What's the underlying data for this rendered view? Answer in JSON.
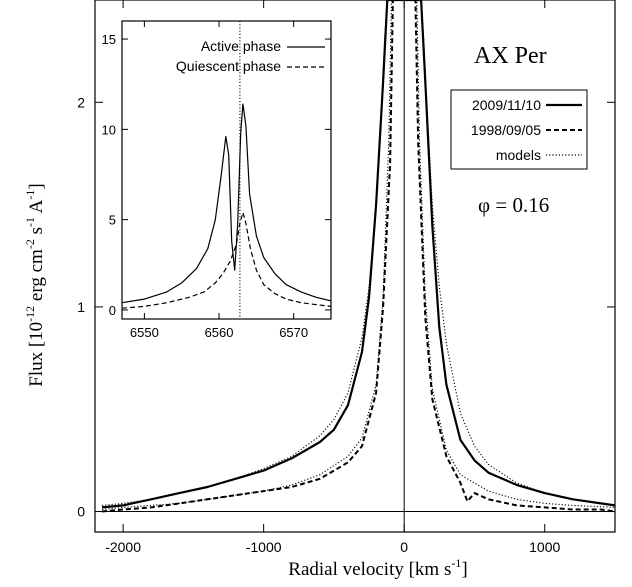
{
  "chart_data": [
    {
      "type": "line",
      "xlabel": "Radial velocity [km s⁻¹]",
      "ylabel": "Flux [10⁻¹² erg cm⁻² s⁻¹ A⁻¹]",
      "xlim": [
        -2200,
        1500
      ],
      "ylim": [
        -0.1,
        2.5
      ],
      "x_ticks": [
        -2000,
        -1000,
        0,
        1000
      ],
      "y_ticks": [
        0,
        1,
        2
      ],
      "x_tick_labels": [
        "-2000",
        "-1000",
        "0",
        "1000"
      ],
      "y_tick_labels": [
        "0",
        "1",
        "2"
      ],
      "grid": false,
      "legend_position": "right",
      "annotations": {
        "object_name": "AX Per",
        "phase": "φ = 0.16"
      },
      "reference_lines": {
        "x": 0,
        "y": 0
      },
      "series": [
        {
          "name": "2009/11/10",
          "style": "solid-thick",
          "x": [
            -2150,
            -2000,
            -1800,
            -1600,
            -1400,
            -1200,
            -1000,
            -800,
            -600,
            -500,
            -400,
            -300,
            -250,
            -200,
            -150,
            -120,
            -100,
            100,
            120,
            150,
            200,
            250,
            300,
            400,
            500,
            600,
            800,
            1000,
            1200,
            1400,
            1500
          ],
          "y": [
            0.02,
            0.03,
            0.06,
            0.09,
            0.12,
            0.16,
            0.2,
            0.26,
            0.34,
            0.4,
            0.52,
            0.78,
            1.05,
            1.5,
            2.1,
            2.5,
            2.5,
            2.5,
            2.5,
            2.1,
            1.4,
            0.9,
            0.62,
            0.35,
            0.25,
            0.19,
            0.13,
            0.09,
            0.06,
            0.04,
            0.03
          ]
        },
        {
          "name": "1998/09/05",
          "style": "dashed-thick",
          "x": [
            -2150,
            -2000,
            -1800,
            -1600,
            -1400,
            -1200,
            -1000,
            -800,
            -600,
            -400,
            -300,
            -200,
            -150,
            -100,
            -80,
            -60,
            60,
            80,
            100,
            150,
            200,
            300,
            400,
            450,
            500,
            600,
            800,
            1000,
            1200,
            1400,
            1500
          ],
          "y": [
            0.0,
            0.01,
            0.02,
            0.04,
            0.06,
            0.08,
            0.1,
            0.12,
            0.16,
            0.24,
            0.32,
            0.58,
            1.0,
            1.7,
            2.5,
            2.5,
            2.5,
            2.5,
            1.8,
            0.95,
            0.55,
            0.27,
            0.14,
            0.05,
            0.09,
            0.06,
            0.03,
            0.02,
            0.01,
            0.01,
            0.0
          ]
        },
        {
          "name": "models",
          "style": "dotted",
          "x": [
            -2150,
            -2000,
            -1800,
            -1600,
            -1400,
            -1200,
            -1000,
            -800,
            -600,
            -500,
            -400,
            -300,
            -250,
            -200,
            -160,
            -140,
            -120,
            120,
            140,
            160,
            200,
            250,
            300,
            400,
            500,
            600,
            800,
            1000,
            1200,
            1400,
            1500
          ],
          "y": [
            0.03,
            0.04,
            0.06,
            0.09,
            0.12,
            0.16,
            0.21,
            0.27,
            0.37,
            0.45,
            0.58,
            0.85,
            1.1,
            1.5,
            2.0,
            2.3,
            2.5,
            2.5,
            2.3,
            2.0,
            1.5,
            1.1,
            0.82,
            0.48,
            0.32,
            0.23,
            0.14,
            0.09,
            0.06,
            0.04,
            0.03
          ]
        },
        {
          "name": "",
          "style": "dotted",
          "x": [
            -2150,
            -2000,
            -1800,
            -1600,
            -1400,
            -1200,
            -1000,
            -800,
            -600,
            -400,
            -300,
            -200,
            -150,
            -110,
            -90,
            90,
            110,
            150,
            200,
            300,
            400,
            600,
            800,
            1000,
            1200,
            1500
          ],
          "y": [
            0.01,
            0.02,
            0.03,
            0.04,
            0.06,
            0.08,
            0.1,
            0.13,
            0.18,
            0.27,
            0.36,
            0.62,
            1.05,
            1.8,
            2.5,
            2.5,
            1.8,
            1.05,
            0.6,
            0.3,
            0.18,
            0.1,
            0.06,
            0.04,
            0.03,
            0.02
          ]
        }
      ]
    },
    {
      "type": "line",
      "xlim": [
        6547,
        6575
      ],
      "ylim": [
        -0.5,
        16
      ],
      "x_ticks": [
        6550,
        6560,
        6570
      ],
      "y_ticks": [
        0,
        5,
        10,
        15
      ],
      "x_tick_labels": [
        "6550",
        "6560",
        "6570"
      ],
      "y_tick_labels": [
        "0",
        "5",
        "10",
        "15"
      ],
      "legend_position": "top-right",
      "reference_line_x": 6562.8,
      "series": [
        {
          "name": "Active phase",
          "style": "solid",
          "x": [
            6547,
            6550,
            6553,
            6555,
            6557,
            6558.5,
            6559.5,
            6560.3,
            6560.9,
            6561.3,
            6561.7,
            6562.1,
            6562.5,
            6562.9,
            6563.2,
            6563.6,
            6564.1,
            6565,
            6566,
            6567.5,
            6569,
            6571,
            6573,
            6575
          ],
          "y": [
            0.4,
            0.6,
            1.0,
            1.5,
            2.3,
            3.4,
            5.0,
            7.5,
            9.6,
            8.6,
            3.8,
            2.2,
            4.8,
            9.8,
            11.4,
            10.2,
            6.4,
            4.1,
            2.9,
            2.0,
            1.4,
            1.0,
            0.7,
            0.5
          ]
        },
        {
          "name": "Quiescent phase",
          "style": "dashed",
          "x": [
            6547,
            6550,
            6553,
            6556,
            6558,
            6559.5,
            6560.5,
            6561.5,
            6562.3,
            6562.8,
            6563.2,
            6563.6,
            6564.2,
            6565,
            6566,
            6567.5,
            6569,
            6571,
            6573,
            6575
          ],
          "y": [
            0.1,
            0.2,
            0.4,
            0.7,
            1.0,
            1.5,
            2.0,
            2.7,
            3.6,
            4.8,
            5.4,
            4.8,
            3.4,
            2.2,
            1.4,
            0.9,
            0.6,
            0.4,
            0.3,
            0.2
          ]
        }
      ]
    }
  ]
}
